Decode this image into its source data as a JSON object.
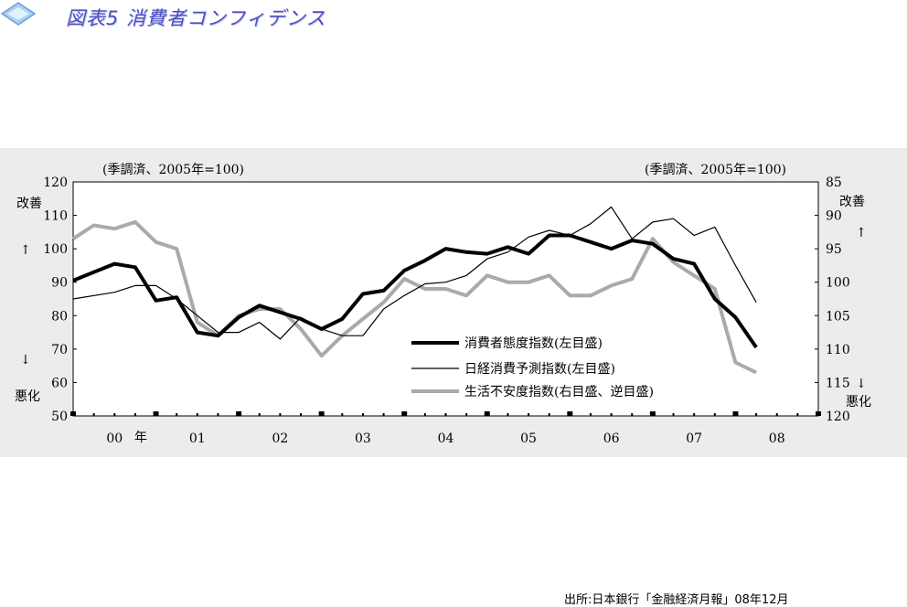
{
  "title": "図表5 消費者コンフィデンス",
  "source_note": "出所:日本銀行「金融経済月報」08年12月",
  "chart_data": {
    "type": "line",
    "note_left": "(季調済、2005年=100)",
    "note_right": "(季調済、2005年=100)",
    "left_axis": {
      "ylim": [
        50,
        120
      ],
      "ticks": [
        "120",
        "110",
        "100",
        "90",
        "80",
        "70",
        "60",
        "50"
      ],
      "label_top": "改善",
      "label_bottom": "悪化",
      "arrow_up": "↑",
      "arrow_down": "↓"
    },
    "right_axis": {
      "ylim": [
        85,
        120
      ],
      "inverted": true,
      "ticks": [
        "85",
        "90",
        "95",
        "100",
        "105",
        "110",
        "115",
        "120"
      ],
      "label_top": "改善",
      "label_bottom": "悪化",
      "arrow_up": "↑",
      "arrow_down": "↓"
    },
    "x_ticks": [
      "00",
      "01",
      "02",
      "03",
      "04",
      "05",
      "06",
      "07",
      "08"
    ],
    "x_unit": "年",
    "xlim": [
      2000.0,
      2009.0
    ],
    "series": [
      {
        "name": "消費者態度指数(左目盛)",
        "axis": "left",
        "color": "#000000",
        "style": "thick",
        "x": [
          2000.0,
          2000.25,
          2000.5,
          2000.75,
          2001.0,
          2001.25,
          2001.5,
          2001.75,
          2002.0,
          2002.25,
          2002.5,
          2002.75,
          2003.0,
          2003.25,
          2003.5,
          2003.75,
          2004.0,
          2004.25,
          2004.5,
          2004.75,
          2005.0,
          2005.25,
          2005.5,
          2005.75,
          2006.0,
          2006.25,
          2006.5,
          2006.75,
          2007.0,
          2007.25,
          2007.5,
          2007.75,
          2008.0,
          2008.25
        ],
        "y": [
          90.5,
          93,
          95.5,
          94.5,
          84.5,
          85.5,
          75,
          74,
          79.5,
          83,
          81,
          79,
          76,
          79,
          86.5,
          87.5,
          93.5,
          96.5,
          100,
          99,
          98.5,
          100.5,
          98.5,
          104,
          104,
          102,
          100,
          102.5,
          101.5,
          97,
          95.5,
          85,
          79.5,
          70.5
        ]
      },
      {
        "name": "日経消費予測指数(左目盛)",
        "axis": "left",
        "color": "#000000",
        "style": "thin",
        "x": [
          2000.0,
          2000.5,
          2000.75,
          2001.0,
          2001.25,
          2001.5,
          2001.75,
          2002.0,
          2002.25,
          2002.5,
          2002.75,
          2003.0,
          2003.25,
          2003.5,
          2003.75,
          2004.0,
          2004.25,
          2004.5,
          2004.75,
          2005.0,
          2005.25,
          2005.5,
          2005.75,
          2006.0,
          2006.25,
          2006.5,
          2006.75,
          2007.0,
          2007.25,
          2007.5,
          2007.75,
          2008.0,
          2008.25
        ],
        "y": [
          85,
          87,
          89,
          89,
          85,
          80,
          75,
          75,
          78,
          73,
          79.5,
          76,
          74,
          74,
          82,
          86,
          89.5,
          90,
          92,
          97,
          99,
          103.5,
          105.5,
          104,
          107.5,
          112.5,
          103,
          108,
          109,
          104,
          106.5,
          95,
          84
        ]
      },
      {
        "name": "生活不安度指数(右目盛、逆目盛)",
        "axis": "right",
        "color": "#aaaaaa",
        "style": "thick",
        "x": [
          2000.0,
          2000.25,
          2000.5,
          2000.75,
          2001.0,
          2001.25,
          2001.5,
          2001.75,
          2002.0,
          2002.25,
          2002.5,
          2002.75,
          2003.0,
          2003.25,
          2003.5,
          2003.75,
          2004.0,
          2004.25,
          2004.5,
          2004.75,
          2005.0,
          2005.25,
          2005.5,
          2005.75,
          2006.0,
          2006.25,
          2006.5,
          2006.75,
          2007.0,
          2007.25,
          2007.5,
          2007.75,
          2008.0,
          2008.25
        ],
        "y": [
          93.5,
          91.5,
          92,
          91,
          94,
          95,
          106,
          108,
          105,
          104,
          104,
          107,
          111,
          108,
          105.5,
          103,
          99.5,
          101,
          101,
          102,
          99,
          100,
          100,
          99,
          102,
          102,
          100.5,
          99.5,
          93.5,
          97,
          99,
          101,
          112,
          113.5
        ]
      }
    ],
    "legend_placement": "center"
  }
}
